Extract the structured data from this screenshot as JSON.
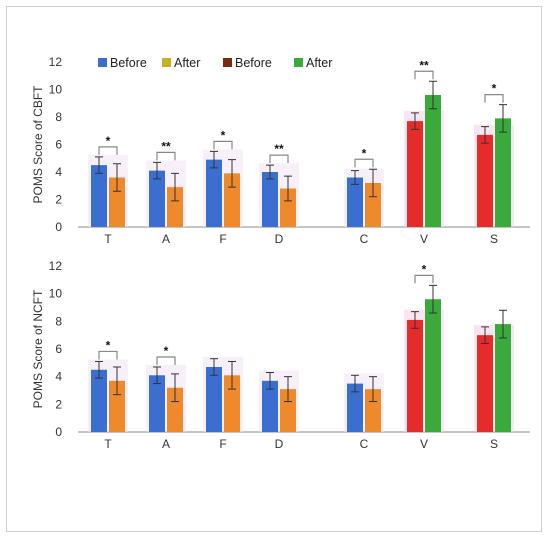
{
  "colors": {
    "before_left": "#3a6fd1",
    "after_left": "#ef8a2c",
    "before_right": "#e62b2b",
    "after_right": "#3aaa3a",
    "legend_before2": "#7a2b12",
    "legend_after1": "#c4b224",
    "error": "#333333",
    "axis": "#888888",
    "bracket": "#888888"
  },
  "legend": [
    {
      "label": "Before",
      "color": "#3a6fd1"
    },
    {
      "label": "After",
      "color": "#c4b224"
    },
    {
      "label": "Before",
      "color": "#7a2b12"
    },
    {
      "label": "After",
      "color": "#3aaa3a"
    }
  ],
  "chart_data": [
    {
      "type": "bar",
      "ylabel": "POMS Score of CBFT",
      "categories": [
        "T",
        "A",
        "F",
        "D",
        "C",
        "V",
        "S"
      ],
      "ylim": [
        0,
        12
      ],
      "yticks": [
        0,
        2,
        4,
        6,
        8,
        10,
        12
      ],
      "series": [
        {
          "name": "Before",
          "values": [
            4.5,
            4.1,
            4.9,
            4.0,
            3.6,
            7.7,
            6.7
          ],
          "errors": [
            0.6,
            0.6,
            0.6,
            0.5,
            0.5,
            0.6,
            0.6
          ]
        },
        {
          "name": "After",
          "values": [
            3.6,
            2.9,
            3.9,
            2.8,
            3.2,
            9.6,
            7.9
          ],
          "errors": [
            1.0,
            1.0,
            1.0,
            0.9,
            1.0,
            1.0,
            1.0
          ]
        }
      ],
      "significance": [
        "*",
        "**",
        "*",
        "**",
        "*",
        "**",
        "*"
      ]
    },
    {
      "type": "bar",
      "ylabel": "POMS Score of NCFT",
      "categories": [
        "T",
        "A",
        "F",
        "D",
        "C",
        "V",
        "S"
      ],
      "ylim": [
        0,
        12
      ],
      "yticks": [
        0,
        2,
        4,
        6,
        8,
        10,
        12
      ],
      "series": [
        {
          "name": "Before",
          "values": [
            4.5,
            4.1,
            4.7,
            3.7,
            3.5,
            8.1,
            7.0
          ],
          "errors": [
            0.6,
            0.6,
            0.6,
            0.6,
            0.6,
            0.6,
            0.6
          ]
        },
        {
          "name": "After",
          "values": [
            3.7,
            3.2,
            4.1,
            3.1,
            3.1,
            9.6,
            7.8
          ],
          "errors": [
            1.0,
            1.0,
            1.0,
            0.9,
            0.9,
            1.0,
            1.0
          ]
        }
      ],
      "significance": [
        "*",
        "*",
        "",
        "",
        "",
        "*",
        ""
      ]
    }
  ]
}
